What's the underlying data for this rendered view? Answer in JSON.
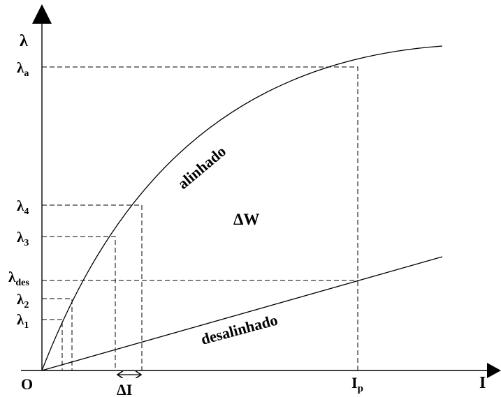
{
  "axes": {
    "y_label": "λ",
    "x_label": "I",
    "origin_label": "O"
  },
  "y_ticks": [
    {
      "main": "λ",
      "sub": "a"
    },
    {
      "main": "λ",
      "sub": "4"
    },
    {
      "main": "λ",
      "sub": "3"
    },
    {
      "main": "λ",
      "sub": "des"
    },
    {
      "main": "λ",
      "sub": "2"
    },
    {
      "main": "λ",
      "sub": "1"
    }
  ],
  "x_ticks": {
    "current_main": "I",
    "current_sub": "p",
    "delta_label": "ΔI"
  },
  "curves": {
    "aligned_label": "alinhado",
    "unaligned_label": "desalinhado"
  },
  "area_label": "ΔW",
  "colors": {
    "ink": "#000000",
    "background": "#ffffff"
  }
}
